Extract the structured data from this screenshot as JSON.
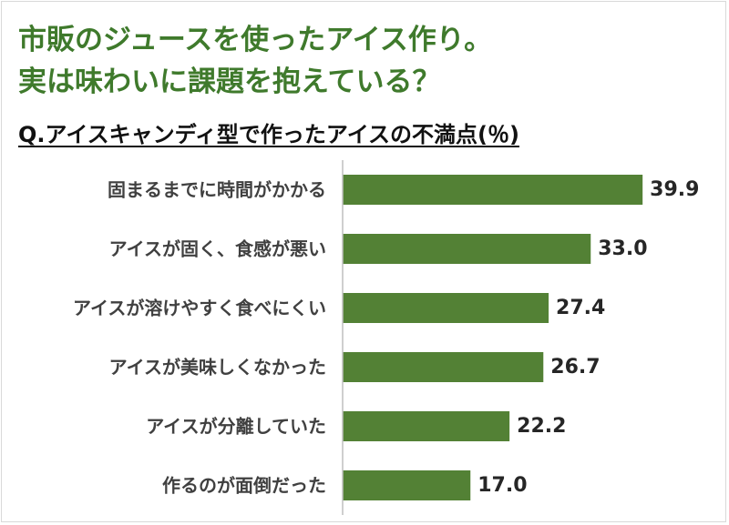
{
  "headline": {
    "line1": "市販のジュースを使ったアイス作り。",
    "line2": "実は味わいに課題を抱えている？"
  },
  "question": "Q.アイスキャンディ型で作ったアイスの不満点(％)",
  "colors": {
    "headline": "#3f7a2c",
    "bar": "#538135",
    "axis": "#bfbfbf"
  },
  "chart_data": {
    "type": "bar",
    "orientation": "horizontal",
    "title": "Q.アイスキャンディ型で作ったアイスの不満点(％)",
    "categories": [
      "固まるまでに時間がかかる",
      "アイスが固く、食感が悪い",
      "アイスが溶けやすく食べにくい",
      "アイスが美味しくなかった",
      "アイスが分離していた",
      "作るのが面倒だった"
    ],
    "values": [
      39.9,
      33.0,
      27.4,
      26.7,
      22.2,
      17.0
    ],
    "value_labels": [
      "39.9",
      "33.0",
      "27.4",
      "26.7",
      "22.2",
      "17.0"
    ],
    "xlim": [
      0,
      40
    ],
    "grid": false,
    "legend": "none"
  }
}
